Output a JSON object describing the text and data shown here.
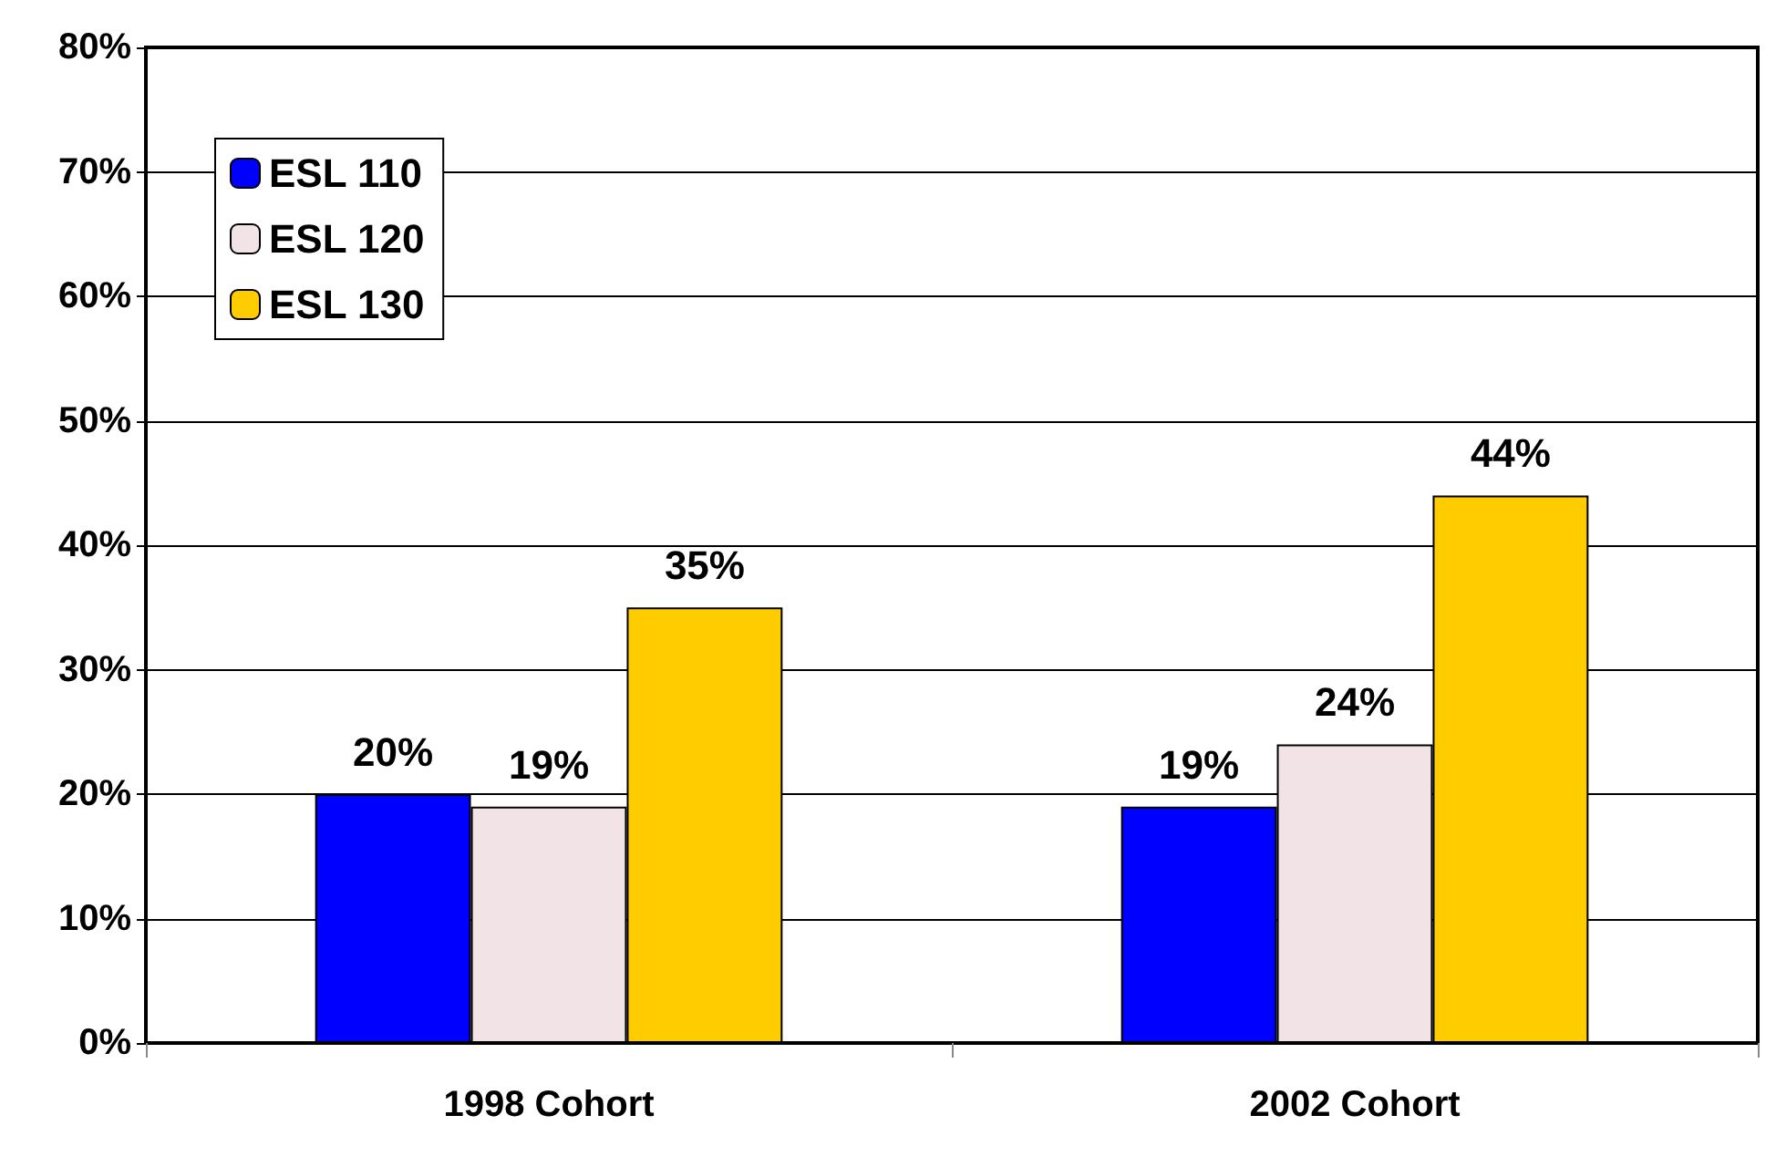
{
  "chart_data": {
    "type": "bar",
    "categories": [
      "1998 Cohort",
      "2002 Cohort"
    ],
    "series": [
      {
        "name": "ESL 110",
        "color": "#0000ff",
        "values": [
          20,
          19
        ],
        "value_labels": [
          "20%",
          "19%"
        ]
      },
      {
        "name": "ESL 120",
        "color": "#f2e4e6",
        "values": [
          19,
          24
        ],
        "value_labels": [
          "19%",
          "24%"
        ]
      },
      {
        "name": "ESL 130",
        "color": "#ffcc00",
        "values": [
          35,
          44
        ],
        "value_labels": [
          "35%",
          "44%"
        ]
      }
    ],
    "ylim": [
      0,
      80
    ],
    "yticks": [
      {
        "value": 0,
        "label": "0%"
      },
      {
        "value": 10,
        "label": "10%"
      },
      {
        "value": 20,
        "label": "20%"
      },
      {
        "value": 30,
        "label": "30%"
      },
      {
        "value": 40,
        "label": "40%"
      },
      {
        "value": 50,
        "label": "50%"
      },
      {
        "value": 60,
        "label": "60%"
      },
      {
        "value": 70,
        "label": "70%"
      },
      {
        "value": 80,
        "label": "80%"
      }
    ],
    "grid": "y",
    "legend": "top left"
  }
}
